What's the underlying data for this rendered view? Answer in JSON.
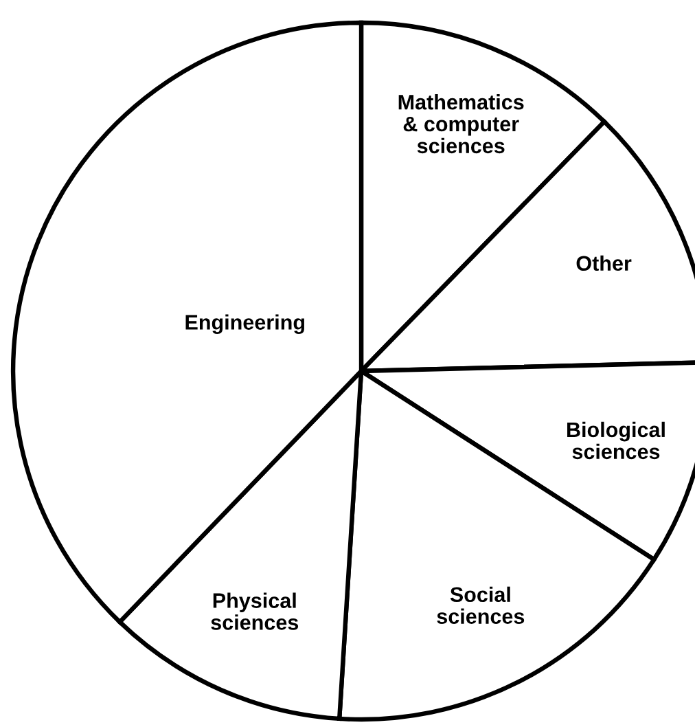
{
  "chart_data": {
    "type": "pie",
    "categories": [
      "Mathematics\n& computer\nsciences",
      "Other",
      "Biological\nsciences",
      "Social\nsciences",
      "Physical\nsciences",
      "Engineering"
    ],
    "values": [
      12.3,
      12.3,
      9.5,
      16.9,
      11.2,
      37.8
    ],
    "colors": [
      "#ffffff",
      "#ffffff",
      "#ffffff",
      "#ffffff",
      "#ffffff",
      "#ffffff"
    ]
  }
}
